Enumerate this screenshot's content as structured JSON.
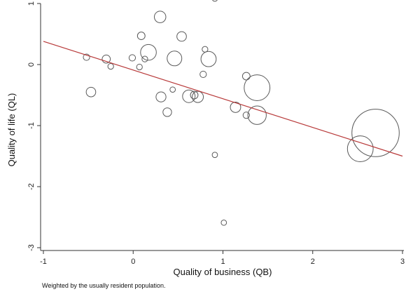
{
  "chart_data": {
    "type": "scatter",
    "xlabel": "Quality of business (QB)",
    "ylabel": "Quality of life (QL)",
    "note": "Weighted by the usually resident population.",
    "xlim": [
      -1,
      3
    ],
    "ylim": [
      -3,
      1
    ],
    "xticks": [
      -1,
      0,
      1,
      2,
      3
    ],
    "yticks": [
      1,
      0,
      -1,
      -2,
      -3
    ],
    "grid": false,
    "legend": "none",
    "colors": {
      "points": "#5a5a5a",
      "fit_line": "#b83a3a",
      "axis": "#333333"
    },
    "points": [
      {
        "x": -0.52,
        "y": 0.12,
        "w": 1
      },
      {
        "x": -0.47,
        "y": -0.45,
        "w": 2.2
      },
      {
        "x": -0.3,
        "y": 0.09,
        "w": 1.6
      },
      {
        "x": -0.25,
        "y": -0.03,
        "w": 0.8
      },
      {
        "x": -0.01,
        "y": 0.11,
        "w": 1
      },
      {
        "x": 0.07,
        "y": -0.04,
        "w": 0.8
      },
      {
        "x": 0.09,
        "y": 0.47,
        "w": 1.4
      },
      {
        "x": 0.13,
        "y": 0.09,
        "w": 0.8
      },
      {
        "x": 0.17,
        "y": 0.2,
        "w": 6
      },
      {
        "x": 0.3,
        "y": 0.78,
        "w": 3.2
      },
      {
        "x": 0.31,
        "y": -0.53,
        "w": 2.4
      },
      {
        "x": 0.38,
        "y": -0.78,
        "w": 1.8
      },
      {
        "x": 0.44,
        "y": -0.41,
        "w": 0.7
      },
      {
        "x": 0.46,
        "y": 0.1,
        "w": 5.2
      },
      {
        "x": 0.54,
        "y": 0.46,
        "w": 2.2
      },
      {
        "x": 0.62,
        "y": -0.52,
        "w": 3.8
      },
      {
        "x": 0.68,
        "y": -0.5,
        "w": 1.4
      },
      {
        "x": 0.72,
        "y": -0.53,
        "w": 3
      },
      {
        "x": 0.78,
        "y": -0.16,
        "w": 1
      },
      {
        "x": 0.8,
        "y": 0.25,
        "w": 0.8
      },
      {
        "x": 0.84,
        "y": 0.09,
        "w": 5.6
      },
      {
        "x": 0.91,
        "y": 1.08,
        "w": 0.7
      },
      {
        "x": 0.91,
        "y": -1.48,
        "w": 0.7
      },
      {
        "x": 1.01,
        "y": -2.59,
        "w": 0.7
      },
      {
        "x": 1.14,
        "y": -0.7,
        "w": 2.6
      },
      {
        "x": 1.26,
        "y": -0.19,
        "w": 1.4
      },
      {
        "x": 1.26,
        "y": -0.83,
        "w": 1
      },
      {
        "x": 1.38,
        "y": -0.38,
        "w": 16
      },
      {
        "x": 1.38,
        "y": -0.83,
        "w": 8.2
      },
      {
        "x": 2.53,
        "y": -1.38,
        "w": 16
      },
      {
        "x": 2.7,
        "y": -1.12,
        "w": 54
      }
    ],
    "fit_line": {
      "x": [
        -1,
        3
      ],
      "y": [
        0.38,
        -1.5
      ]
    }
  }
}
